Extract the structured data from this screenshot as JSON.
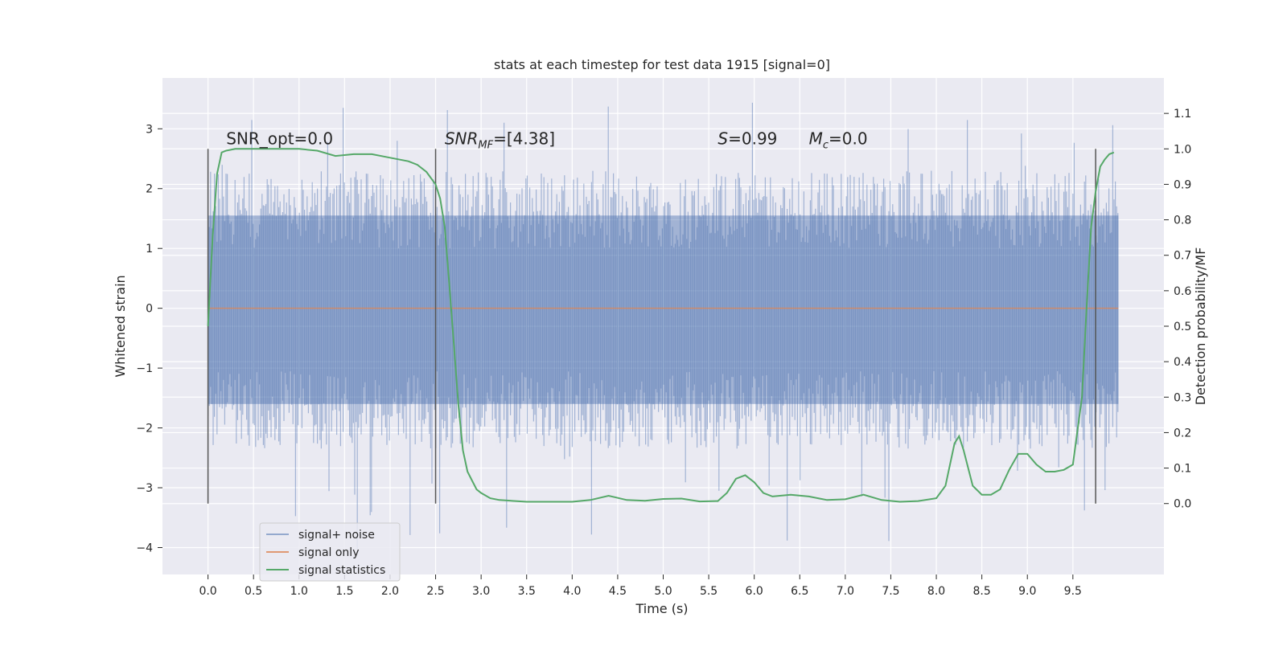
{
  "chart_data": {
    "type": "line",
    "title": "stats at each timestep for test data 1915 [signal=0]",
    "xlabel": "Time (s)",
    "ylabel": "Whitened strain",
    "y2label": "Detection probability/MF",
    "xlim": [
      -0.5,
      10.5
    ],
    "ylim": [
      -4.45,
      3.85
    ],
    "y2lim": [
      -0.2,
      1.2
    ],
    "x_ticks": [
      "0.0",
      "0.5",
      "1.0",
      "1.5",
      "2.0",
      "2.5",
      "3.0",
      "3.5",
      "4.0",
      "4.5",
      "5.0",
      "5.5",
      "6.0",
      "6.5",
      "7.0",
      "7.5",
      "8.0",
      "8.5",
      "9.0",
      "9.5"
    ],
    "y_ticks": [
      "3",
      "2",
      "1",
      "0",
      "−1",
      "−2",
      "−3",
      "−4"
    ],
    "y2_ticks": [
      "1.1",
      "1.0",
      "0.9",
      "0.8",
      "0.7",
      "0.6",
      "0.5",
      "0.4",
      "0.3",
      "0.2",
      "0.1",
      "0.0"
    ],
    "grid": true,
    "legend_position": "lower-left",
    "colors": {
      "background": "#eaeaf2",
      "grid": "#ffffff",
      "noise": "#4c72b0",
      "signal": "#dd8452",
      "statistics": "#55a868",
      "markers": "#555555"
    },
    "annotations": [
      {
        "text": "SNR_opt=0.0",
        "x": 0.2
      },
      {
        "text": "SNR",
        "sub": "MF",
        "rest": "=[4.38]",
        "x": 2.6
      },
      {
        "text": "S",
        "rest": "=0.99",
        "x": 5.6
      },
      {
        "text": "M",
        "sub": "c",
        "rest": "=0.0",
        "x": 6.6
      }
    ],
    "vertical_markers": [
      0.0,
      2.5,
      9.75
    ],
    "series": [
      {
        "name": "signal+ noise",
        "type": "noise-band",
        "x_range": [
          0.0,
          10.0
        ],
        "typical_low": -1.6,
        "typical_high": 1.55,
        "min": -4.05,
        "max": 3.52
      },
      {
        "name": "signal only",
        "x": [
          0.0,
          10.0
        ],
        "y": [
          0.0,
          0.0
        ]
      },
      {
        "name": "signal statistics",
        "axis": "right",
        "x": [
          0.0,
          0.05,
          0.1,
          0.15,
          0.2,
          0.3,
          0.5,
          0.8,
          1.0,
          1.2,
          1.4,
          1.6,
          1.8,
          2.0,
          2.2,
          2.3,
          2.4,
          2.5,
          2.55,
          2.6,
          2.65,
          2.7,
          2.75,
          2.8,
          2.85,
          2.9,
          2.95,
          3.0,
          3.1,
          3.2,
          3.5,
          4.0,
          4.2,
          4.4,
          4.6,
          4.8,
          5.0,
          5.2,
          5.4,
          5.6,
          5.7,
          5.8,
          5.9,
          6.0,
          6.1,
          6.2,
          6.4,
          6.6,
          6.8,
          7.0,
          7.2,
          7.4,
          7.6,
          7.8,
          8.0,
          8.1,
          8.2,
          8.25,
          8.3,
          8.4,
          8.5,
          8.6,
          8.7,
          8.8,
          8.9,
          9.0,
          9.1,
          9.2,
          9.3,
          9.4,
          9.5,
          9.6,
          9.65,
          9.7,
          9.75,
          9.8,
          9.85,
          9.9,
          9.95
        ],
        "y": [
          0.5,
          0.75,
          0.93,
          0.99,
          0.995,
          1.0,
          1.0,
          1.0,
          1.0,
          0.995,
          0.98,
          0.985,
          0.985,
          0.975,
          0.965,
          0.955,
          0.935,
          0.9,
          0.86,
          0.78,
          0.62,
          0.45,
          0.28,
          0.15,
          0.09,
          0.065,
          0.04,
          0.03,
          0.015,
          0.01,
          0.005,
          0.005,
          0.01,
          0.022,
          0.01,
          0.008,
          0.013,
          0.014,
          0.006,
          0.007,
          0.03,
          0.07,
          0.08,
          0.06,
          0.03,
          0.02,
          0.025,
          0.02,
          0.01,
          0.012,
          0.025,
          0.01,
          0.005,
          0.007,
          0.015,
          0.05,
          0.17,
          0.19,
          0.15,
          0.05,
          0.025,
          0.025,
          0.04,
          0.095,
          0.14,
          0.14,
          0.11,
          0.09,
          0.09,
          0.095,
          0.11,
          0.3,
          0.55,
          0.78,
          0.88,
          0.95,
          0.97,
          0.985,
          0.99
        ]
      }
    ]
  }
}
